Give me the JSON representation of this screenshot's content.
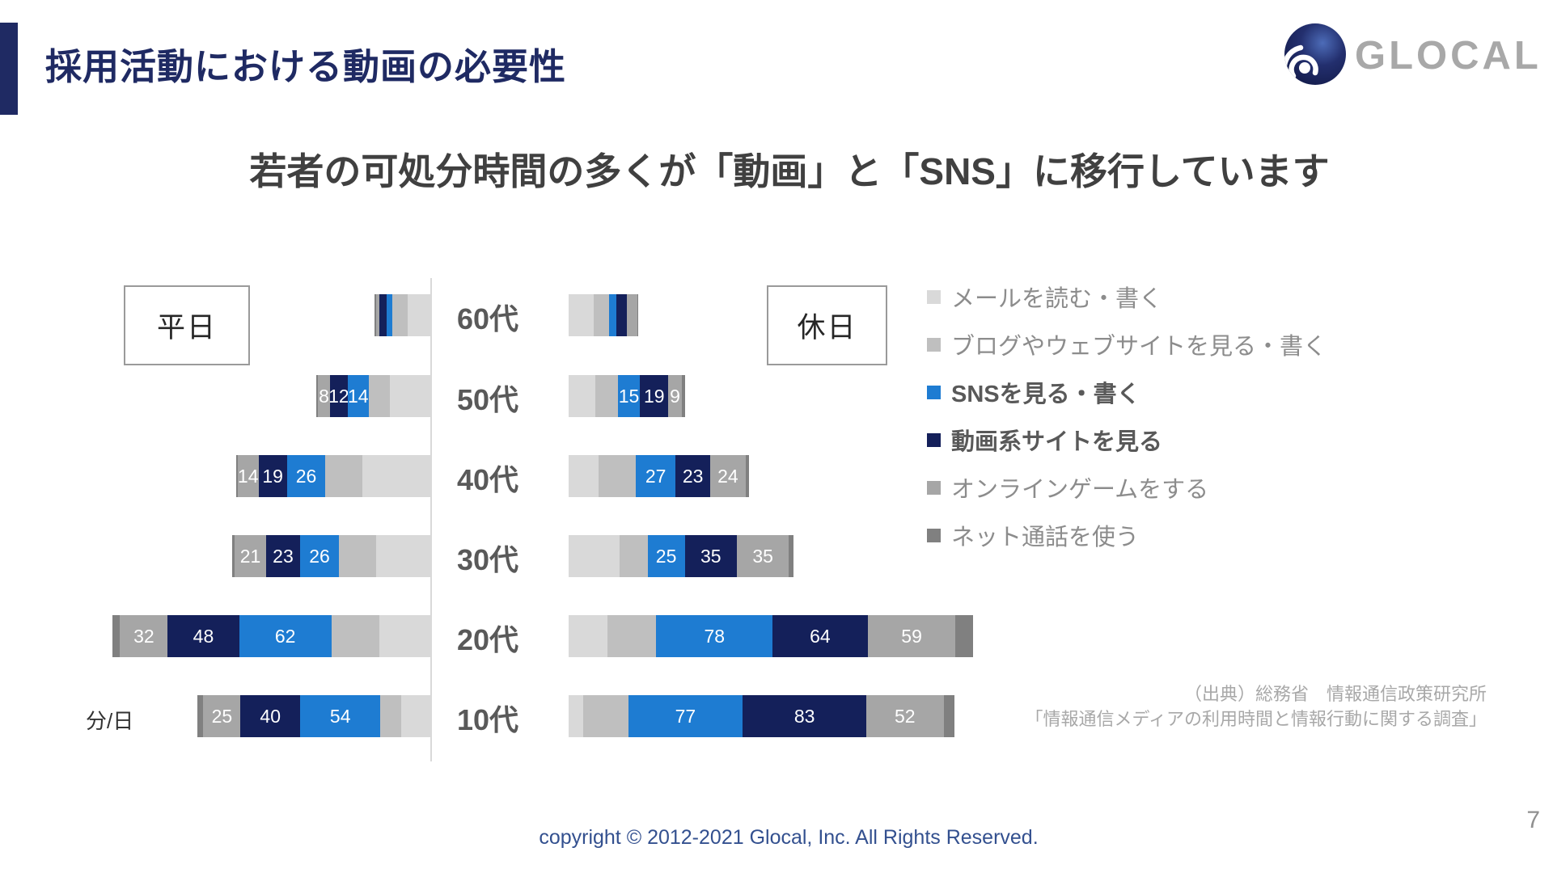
{
  "slide": {
    "title": "採用活動における動画の必要性",
    "subtitle": "若者の可処分時間の多くが「動画」と「SNS」に移行しています",
    "logo_text": "GLOCAL",
    "source_line1": "（出典）総務省　情報通信政策研究所",
    "source_line2": "「情報通信メディアの利用時間と情報行動に関する調査」",
    "footer": "copyright © 2012-2021 Glocal, Inc. All Rights Reserved.",
    "page_number": "7"
  },
  "colors": {
    "accent_navy": "#1f2a63",
    "footer_blue": "#33508f",
    "subtitle_gray": "#404040",
    "age_label_gray": "#595959",
    "legend_gray": "#8c8c8c",
    "source_gray": "#a8a8a8"
  },
  "chart_data": {
    "type": "bar",
    "subtype": "diverging-stacked-horizontal",
    "unit_label": "分/日",
    "categories_top_to_bottom": [
      "60代",
      "50代",
      "40代",
      "30代",
      "20代",
      "10代"
    ],
    "segments_order_from_axis": [
      "mail",
      "blog",
      "sns",
      "video",
      "game",
      "call"
    ],
    "segment_colors": {
      "mail": "#d9d9d9",
      "blog": "#bfbfbf",
      "sns": "#1e7cd2",
      "video": "#14205a",
      "game": "#a6a6a6",
      "call": "#808080"
    },
    "legend": [
      {
        "key": "mail",
        "label": "メールを読む・書く",
        "bold": false
      },
      {
        "key": "blog",
        "label": "ブログやウェブサイトを見る・書く",
        "bold": false
      },
      {
        "key": "sns",
        "label": "SNSを見る・書く",
        "bold": true
      },
      {
        "key": "video",
        "label": "動画系サイトを見る",
        "bold": true
      },
      {
        "key": "game",
        "label": "オンラインゲームをする",
        "bold": false
      },
      {
        "key": "call",
        "label": "ネット通話を使う",
        "bold": false
      }
    ],
    "value_labels": {
      "shown_on_segments": [
        "sns",
        "video",
        "game"
      ],
      "hidden_for_categories": [
        "60代"
      ]
    },
    "weekday": {
      "label": "平日",
      "values": {
        "60代": {
          "mail": 16,
          "blog": 10,
          "sns": 4,
          "video": 5,
          "game": 2,
          "call": 1
        },
        "50代": {
          "mail": 28,
          "blog": 14,
          "sns": 14,
          "video": 12,
          "game": 8,
          "call": 1
        },
        "40代": {
          "mail": 46,
          "blog": 25,
          "sns": 26,
          "video": 19,
          "game": 14,
          "call": 1
        },
        "30代": {
          "mail": 37,
          "blog": 25,
          "sns": 26,
          "video": 23,
          "game": 21,
          "call": 2
        },
        "20代": {
          "mail": 35,
          "blog": 32,
          "sns": 62,
          "video": 48,
          "game": 32,
          "call": 5
        },
        "10代": {
          "mail": 20,
          "blog": 14,
          "sns": 54,
          "video": 40,
          "game": 25,
          "call": 4
        }
      }
    },
    "weekend": {
      "label": "休日",
      "values": {
        "60代": {
          "mail": 17,
          "blog": 10,
          "sns": 5,
          "video": 7,
          "game": 7,
          "call": 1
        },
        "50代": {
          "mail": 18,
          "blog": 15,
          "sns": 15,
          "video": 19,
          "game": 9,
          "call": 2
        },
        "40代": {
          "mail": 20,
          "blog": 25,
          "sns": 27,
          "video": 23,
          "game": 24,
          "call": 2
        },
        "30代": {
          "mail": 34,
          "blog": 19,
          "sns": 25,
          "video": 35,
          "game": 35,
          "call": 3
        },
        "20代": {
          "mail": 26,
          "blog": 33,
          "sns": 78,
          "video": 64,
          "game": 59,
          "call": 12
        },
        "10代": {
          "mail": 10,
          "blog": 30,
          "sns": 77,
          "video": 83,
          "game": 52,
          "call": 7
        }
      }
    }
  }
}
